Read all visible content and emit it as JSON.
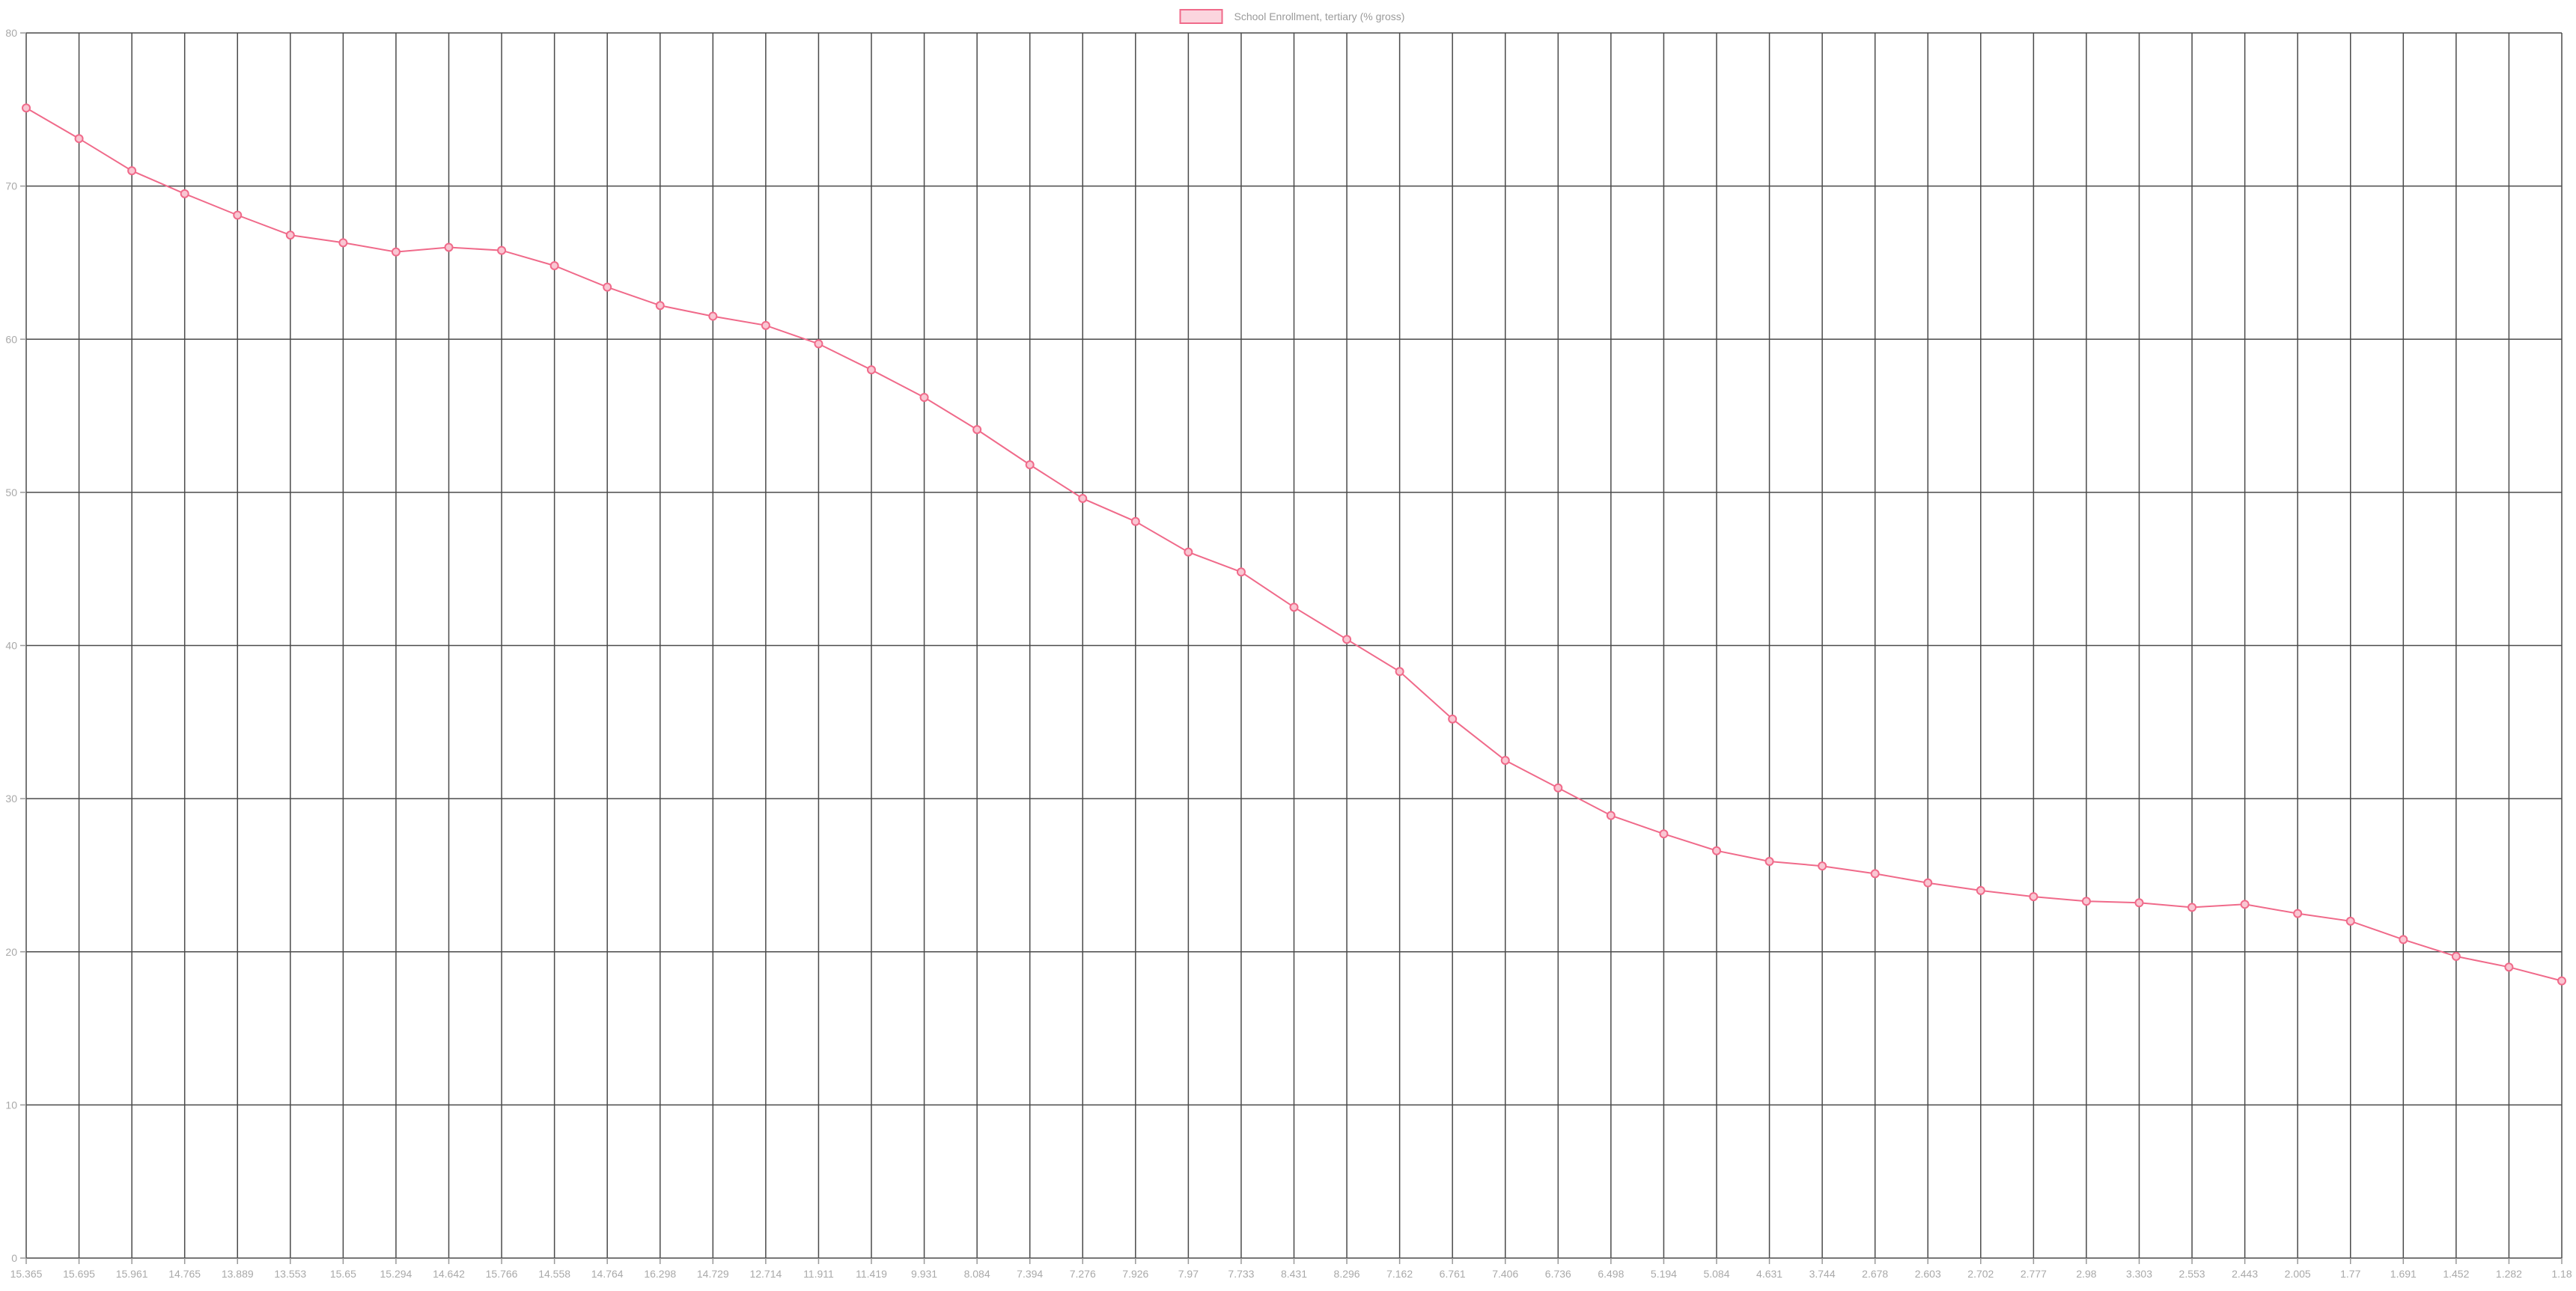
{
  "chart_data": {
    "type": "line",
    "title": "",
    "xlabel": "",
    "ylabel": "",
    "legend": {
      "position": "top-center",
      "label": "School Enrollment, tertiary (% gross)"
    },
    "grid": true,
    "ylim": [
      0,
      80
    ],
    "yticks": [
      0,
      10,
      20,
      30,
      40,
      50,
      60,
      70,
      80
    ],
    "categories": [
      "15.365",
      "15.695",
      "15.961",
      "14.765",
      "13.889",
      "13.553",
      "15.65",
      "15.294",
      "14.642",
      "15.766",
      "14.558",
      "14.764",
      "16.298",
      "14.729",
      "12.714",
      "11.911",
      "11.419",
      "9.931",
      "8.084",
      "7.394",
      "7.276",
      "7.926",
      "7.97",
      "7.733",
      "8.431",
      "8.296",
      "7.162",
      "6.761",
      "7.406",
      "6.736",
      "6.498",
      "5.194",
      "5.084",
      "4.631",
      "3.744",
      "2.678",
      "2.603",
      "2.702",
      "2.777",
      "2.98",
      "3.303",
      "2.553",
      "2.443",
      "2.005",
      "1.77",
      "1.691",
      "1.452",
      "1.282",
      "1.18"
    ],
    "series": [
      {
        "name": "School Enrollment, tertiary (% gross)",
        "color": "#f06a8a",
        "values": [
          75.1,
          73.1,
          71.0,
          69.5,
          68.1,
          66.8,
          66.3,
          65.7,
          66.0,
          65.8,
          64.8,
          63.4,
          62.2,
          61.5,
          60.9,
          59.7,
          58.0,
          56.2,
          54.1,
          51.8,
          49.6,
          48.1,
          46.1,
          44.8,
          42.5,
          40.4,
          38.3,
          35.2,
          32.5,
          30.7,
          28.9,
          27.7,
          26.6,
          25.9,
          25.6,
          25.1,
          24.5,
          24.0,
          23.6,
          23.3,
          23.2,
          22.9,
          23.1,
          22.5,
          22.0,
          20.8,
          19.7,
          19.0,
          18.1
        ]
      }
    ]
  }
}
